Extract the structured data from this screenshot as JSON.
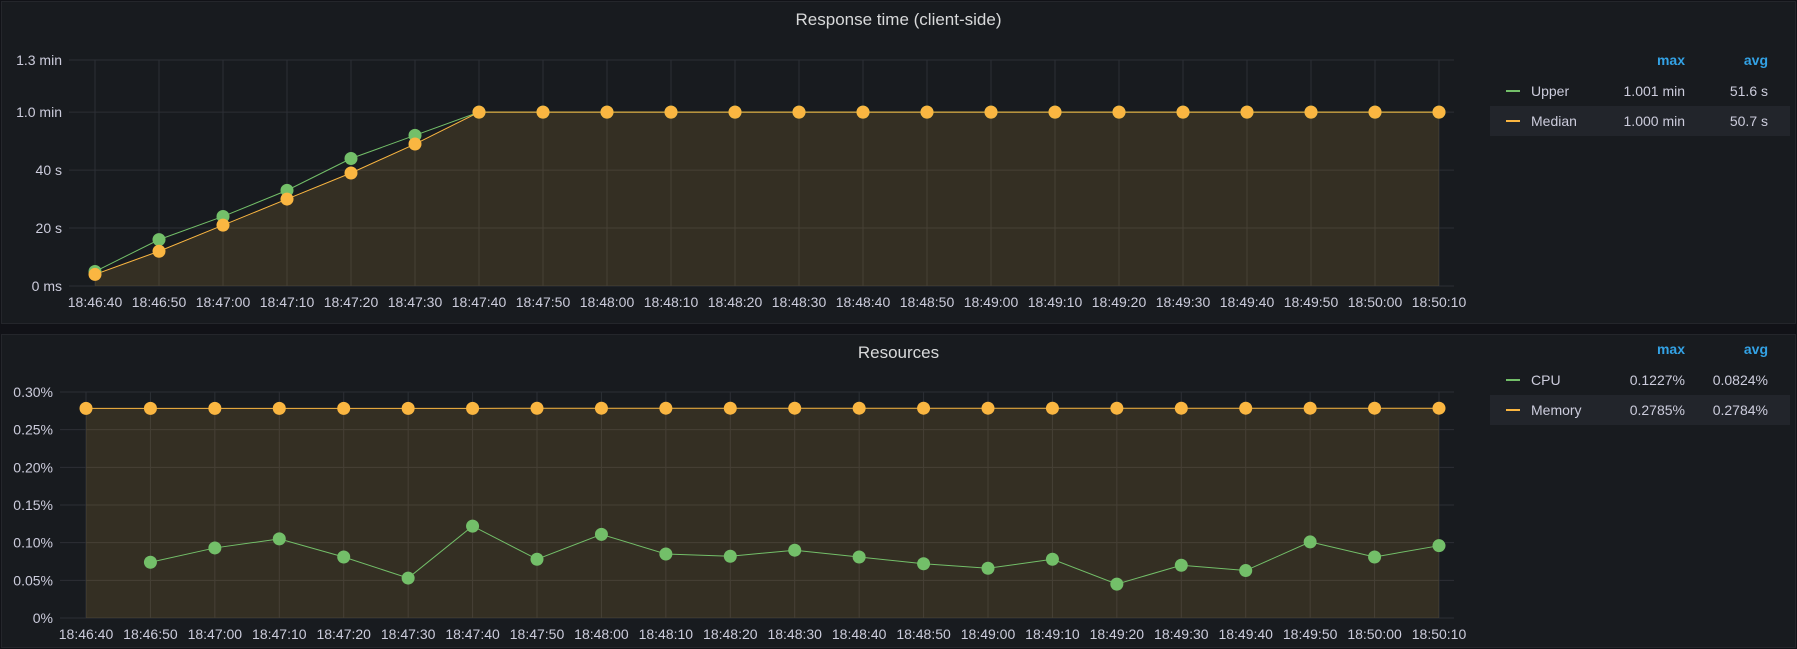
{
  "chart_data": [
    {
      "type": "line",
      "title": "Response time (client-side)",
      "x": [
        "18:46:40",
        "18:46:50",
        "18:47:00",
        "18:47:10",
        "18:47:20",
        "18:47:30",
        "18:47:40",
        "18:47:50",
        "18:48:00",
        "18:48:10",
        "18:48:20",
        "18:48:30",
        "18:48:40",
        "18:48:50",
        "18:49:00",
        "18:49:10",
        "18:49:20",
        "18:49:30",
        "18:49:40",
        "18:49:50",
        "18:50:00",
        "18:50:10"
      ],
      "y_unit": "seconds",
      "ylim": [
        0,
        78
      ],
      "yticks": [
        {
          "value": 0,
          "label": "0 ms"
        },
        {
          "value": 20,
          "label": "20 s"
        },
        {
          "value": 40,
          "label": "40 s"
        },
        {
          "value": 60,
          "label": "1.0 min"
        },
        {
          "value": 78,
          "label": "1.3 min"
        }
      ],
      "grid": true,
      "legend_position": "right",
      "series": [
        {
          "name": "Upper",
          "color": "#73bf69",
          "values": [
            5,
            16,
            24,
            33,
            44,
            52,
            60,
            60,
            60,
            60,
            60,
            60,
            60,
            60,
            60,
            60,
            60,
            60,
            60,
            60,
            60,
            60
          ],
          "max": "1.001 min",
          "avg": "51.6 s"
        },
        {
          "name": "Median",
          "color": "#fab641",
          "fill": true,
          "values": [
            4,
            12,
            21,
            30,
            39,
            49,
            60,
            60,
            60,
            60,
            60,
            60,
            60,
            60,
            60,
            60,
            60,
            60,
            60,
            60,
            60,
            60
          ],
          "max": "1.000 min",
          "avg": "50.7 s"
        }
      ],
      "legend_headers": {
        "max": "max",
        "avg": "avg"
      }
    },
    {
      "type": "line",
      "title": "Resources",
      "x": [
        "18:46:40",
        "18:46:50",
        "18:47:00",
        "18:47:10",
        "18:47:20",
        "18:47:30",
        "18:47:40",
        "18:47:50",
        "18:48:00",
        "18:48:10",
        "18:48:20",
        "18:48:30",
        "18:48:40",
        "18:48:50",
        "18:49:00",
        "18:49:10",
        "18:49:20",
        "18:49:30",
        "18:49:40",
        "18:49:50",
        "18:50:00",
        "18:50:10"
      ],
      "y_unit": "percent",
      "ylim": [
        0,
        0.3
      ],
      "yticks": [
        {
          "value": 0,
          "label": "0%"
        },
        {
          "value": 0.05,
          "label": "0.05%"
        },
        {
          "value": 0.1,
          "label": "0.10%"
        },
        {
          "value": 0.15,
          "label": "0.15%"
        },
        {
          "value": 0.2,
          "label": "0.20%"
        },
        {
          "value": 0.25,
          "label": "0.25%"
        },
        {
          "value": 0.3,
          "label": "0.30%"
        }
      ],
      "grid": true,
      "legend_position": "right",
      "series": [
        {
          "name": "CPU",
          "color": "#73bf69",
          "values": [
            null,
            0.074,
            0.093,
            0.105,
            0.081,
            0.053,
            0.122,
            0.078,
            0.111,
            0.085,
            0.082,
            0.09,
            0.081,
            0.072,
            0.066,
            0.078,
            0.045,
            0.07,
            0.063,
            0.101,
            0.081,
            0.096
          ],
          "max": "0.1227%",
          "avg": "0.0824%"
        },
        {
          "name": "Memory",
          "color": "#fab641",
          "fill": true,
          "values": [
            0.2783,
            0.2783,
            0.2783,
            0.2783,
            0.2783,
            0.2783,
            0.2783,
            0.2784,
            0.2785,
            0.2785,
            0.2785,
            0.2785,
            0.2785,
            0.2785,
            0.2785,
            0.2785,
            0.2785,
            0.2785,
            0.2785,
            0.2785,
            0.2785,
            0.2785
          ],
          "max": "0.2785%",
          "avg": "0.2784%"
        }
      ],
      "legend_headers": {
        "max": "max",
        "avg": "avg"
      }
    }
  ]
}
